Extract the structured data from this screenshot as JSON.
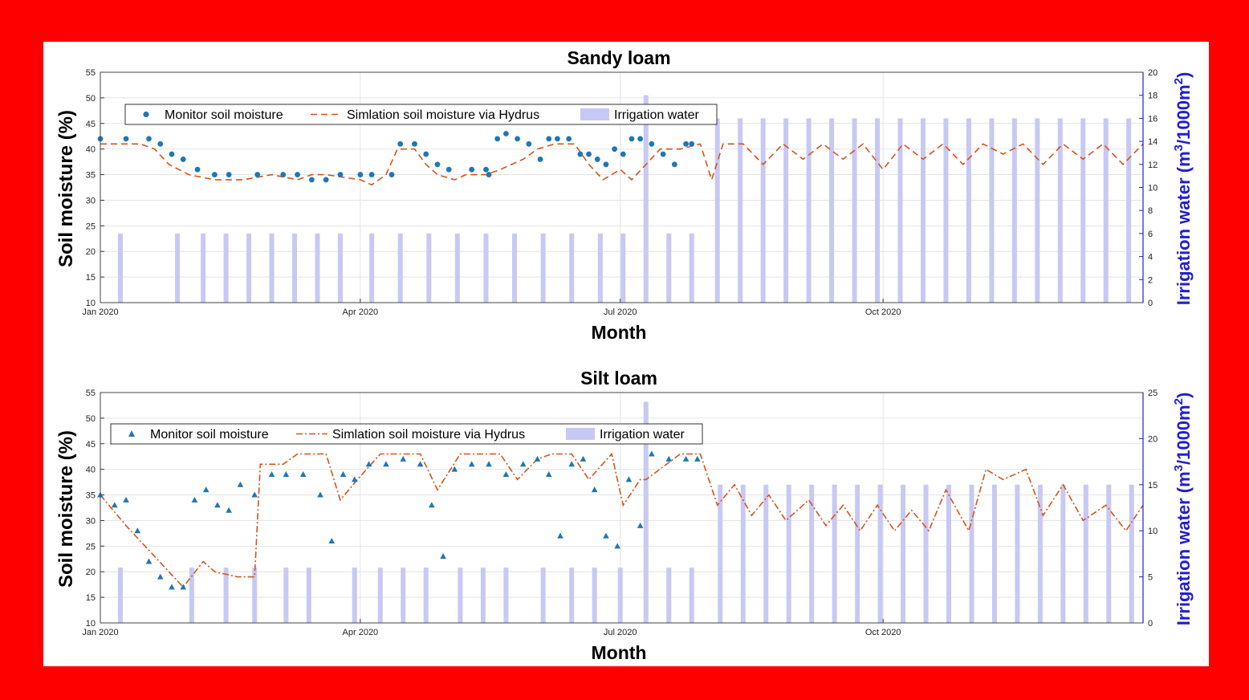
{
  "colors": {
    "frame": "#ff0000",
    "monitor": "#1f77b4",
    "simulation": "#d95319",
    "irrigation": "#c8c8f4",
    "right_axis": "#2020d0"
  },
  "x_ticks": [
    "Jan 2020",
    "Apr 2020",
    "Jul 2020",
    "Oct 2020"
  ],
  "chart_data": [
    {
      "type": "line",
      "title": "Sandy loam",
      "xlabel": "Month",
      "ylabel": "Soil moisture (%)",
      "y2label_base": "Irrigation water (m",
      "y2label_sup1": "3",
      "y2label_mid": "/1000m",
      "y2label_sup2": "2",
      "y2label_end": ")",
      "xlim": [
        "2020-01-01",
        "2020-12-31"
      ],
      "ylim": [
        10,
        55
      ],
      "y_ticks": [
        "10",
        "15",
        "20",
        "25",
        "30",
        "35",
        "40",
        "45",
        "50",
        "55"
      ],
      "y2lim": [
        0,
        20
      ],
      "y2_ticks": [
        "0",
        "2",
        "4",
        "6",
        "8",
        "10",
        "12",
        "14",
        "16",
        "18",
        "20"
      ],
      "legend_position": "top-left",
      "legend": [
        "Monitor soil moisture",
        "Simlation soil moisture via Hydrus",
        "Irrigation water"
      ],
      "series": [
        {
          "name": "Monitor soil moisture",
          "marker": "circle",
          "x": [
            "2020-01-01",
            "2020-01-10",
            "2020-01-18",
            "2020-01-22",
            "2020-01-26",
            "2020-01-30",
            "2020-02-04",
            "2020-02-10",
            "2020-02-15",
            "2020-02-25",
            "2020-03-05",
            "2020-03-10",
            "2020-03-15",
            "2020-03-20",
            "2020-03-25",
            "2020-04-01",
            "2020-04-05",
            "2020-04-12",
            "2020-04-15",
            "2020-04-20",
            "2020-04-24",
            "2020-04-28",
            "2020-05-02",
            "2020-05-10",
            "2020-05-15",
            "2020-05-16",
            "2020-05-19",
            "2020-05-22",
            "2020-05-26",
            "2020-05-30",
            "2020-06-03",
            "2020-06-06",
            "2020-06-09",
            "2020-06-13",
            "2020-06-17",
            "2020-06-20",
            "2020-06-23",
            "2020-06-26",
            "2020-06-29",
            "2020-07-02",
            "2020-07-05",
            "2020-07-08",
            "2020-07-12",
            "2020-07-16",
            "2020-07-20",
            "2020-07-24",
            "2020-07-26"
          ],
          "y": [
            42,
            42,
            42,
            41,
            39,
            38,
            36,
            35,
            35,
            35,
            35,
            35,
            34,
            34,
            35,
            35,
            35,
            35,
            41,
            41,
            39,
            37,
            36,
            36,
            36,
            35,
            42,
            43,
            42,
            41,
            38,
            42,
            42,
            42,
            39,
            39,
            38,
            37,
            40,
            39,
            42,
            42,
            41,
            39,
            37,
            41,
            41
          ]
        },
        {
          "name": "Simlation soil moisture via Hydrus",
          "style": "dashed",
          "x": [
            "2020-01-01",
            "2020-01-15",
            "2020-01-20",
            "2020-01-25",
            "2020-02-01",
            "2020-02-10",
            "2020-02-20",
            "2020-03-01",
            "2020-03-10",
            "2020-03-15",
            "2020-03-20",
            "2020-04-01",
            "2020-04-05",
            "2020-04-10",
            "2020-04-14",
            "2020-04-20",
            "2020-04-24",
            "2020-04-28",
            "2020-05-04",
            "2020-05-08",
            "2020-05-15",
            "2020-05-20",
            "2020-05-28",
            "2020-06-02",
            "2020-06-08",
            "2020-06-15",
            "2020-06-20",
            "2020-06-25",
            "2020-07-01",
            "2020-07-05",
            "2020-07-10",
            "2020-07-15",
            "2020-07-22",
            "2020-07-29",
            "2020-08-02",
            "2020-08-06",
            "2020-08-13",
            "2020-08-20",
            "2020-08-27",
            "2020-09-03",
            "2020-09-10",
            "2020-09-17",
            "2020-09-24",
            "2020-10-01",
            "2020-10-08",
            "2020-10-15",
            "2020-10-22",
            "2020-10-29",
            "2020-11-05",
            "2020-11-12",
            "2020-11-19",
            "2020-11-26",
            "2020-12-03",
            "2020-12-10",
            "2020-12-17",
            "2020-12-24",
            "2020-12-31"
          ],
          "y": [
            41,
            41,
            40,
            37,
            35,
            34,
            34,
            35,
            34,
            35,
            35,
            34,
            33,
            35,
            40,
            40,
            37,
            35,
            34,
            35,
            35,
            36,
            38,
            40,
            41,
            41,
            37,
            34,
            36,
            34,
            37,
            40,
            40,
            41,
            34,
            41,
            41,
            37,
            41,
            38,
            41,
            38,
            41,
            36,
            41,
            38,
            41,
            37,
            41,
            39,
            41,
            37,
            41,
            38,
            41,
            37,
            41
          ]
        },
        {
          "name": "Irrigation water",
          "type": "bar",
          "axis": "right",
          "x": [
            "2020-01-08",
            "2020-01-28",
            "2020-02-06",
            "2020-02-14",
            "2020-02-22",
            "2020-03-01",
            "2020-03-09",
            "2020-03-17",
            "2020-03-25",
            "2020-04-05",
            "2020-04-15",
            "2020-04-25",
            "2020-05-05",
            "2020-05-15",
            "2020-05-25",
            "2020-06-04",
            "2020-06-14",
            "2020-06-24",
            "2020-07-02",
            "2020-07-10",
            "2020-07-18",
            "2020-07-26",
            "2020-08-04",
            "2020-08-12",
            "2020-08-20",
            "2020-08-28",
            "2020-09-05",
            "2020-09-13",
            "2020-09-21",
            "2020-09-29",
            "2020-10-07",
            "2020-10-15",
            "2020-10-23",
            "2020-10-31",
            "2020-11-08",
            "2020-11-16",
            "2020-11-24",
            "2020-12-02",
            "2020-12-10",
            "2020-12-18",
            "2020-12-26"
          ],
          "values": [
            6,
            6,
            6,
            6,
            6,
            6,
            6,
            6,
            6,
            6,
            6,
            6,
            6,
            6,
            6,
            6,
            6,
            6,
            6,
            18,
            6,
            6,
            16,
            16,
            16,
            16,
            16,
            16,
            16,
            16,
            16,
            16,
            16,
            16,
            16,
            16,
            16,
            16,
            16,
            16,
            16
          ]
        }
      ]
    },
    {
      "type": "line",
      "title": "Silt loam",
      "xlabel": "Month",
      "ylabel": "Soil moisture (%)",
      "y2label_base": "Irrigation water (m",
      "y2label_sup1": "3",
      "y2label_mid": "/1000m",
      "y2label_sup2": "2",
      "y2label_end": ")",
      "xlim": [
        "2020-01-01",
        "2020-12-31"
      ],
      "ylim": [
        10,
        55
      ],
      "y_ticks": [
        "10",
        "15",
        "20",
        "25",
        "30",
        "35",
        "40",
        "45",
        "50",
        "55"
      ],
      "y2lim": [
        0,
        25
      ],
      "y2_ticks": [
        "0",
        "5",
        "10",
        "15",
        "20",
        "25"
      ],
      "legend_position": "top-left",
      "legend": [
        "Monitor soil moisture",
        "Simlation soil moisture via Hydrus",
        "Irrigation water"
      ],
      "series": [
        {
          "name": "Monitor soil moisture",
          "marker": "triangle",
          "x": [
            "2020-01-01",
            "2020-01-06",
            "2020-01-10",
            "2020-01-14",
            "2020-01-18",
            "2020-01-22",
            "2020-01-26",
            "2020-01-30",
            "2020-02-03",
            "2020-02-07",
            "2020-02-11",
            "2020-02-15",
            "2020-02-19",
            "2020-02-24",
            "2020-03-01",
            "2020-03-06",
            "2020-03-12",
            "2020-03-18",
            "2020-03-22",
            "2020-03-26",
            "2020-03-30",
            "2020-04-04",
            "2020-04-10",
            "2020-04-16",
            "2020-04-22",
            "2020-04-26",
            "2020-04-30",
            "2020-05-04",
            "2020-05-10",
            "2020-05-16",
            "2020-05-22",
            "2020-05-28",
            "2020-06-02",
            "2020-06-06",
            "2020-06-10",
            "2020-06-14",
            "2020-06-18",
            "2020-06-22",
            "2020-06-26",
            "2020-06-30",
            "2020-07-04",
            "2020-07-08",
            "2020-07-12",
            "2020-07-18",
            "2020-07-24",
            "2020-07-28"
          ],
          "y": [
            35,
            33,
            34,
            28,
            22,
            19,
            17,
            17,
            34,
            36,
            33,
            32,
            37,
            35,
            39,
            39,
            39,
            35,
            26,
            39,
            38,
            41,
            41,
            42,
            41,
            33,
            23,
            40,
            41,
            41,
            39,
            41,
            42,
            39,
            27,
            41,
            42,
            36,
            27,
            25,
            38,
            29,
            43,
            42,
            42,
            42
          ]
        },
        {
          "name": "Simlation soil moisture via Hydrus",
          "style": "dashdot",
          "x": [
            "2020-01-01",
            "2020-01-10",
            "2020-01-20",
            "2020-01-30",
            "2020-02-06",
            "2020-02-10",
            "2020-02-18",
            "2020-02-24",
            "2020-02-26",
            "2020-03-05",
            "2020-03-10",
            "2020-03-20",
            "2020-03-25",
            "2020-03-31",
            "2020-04-08",
            "2020-04-16",
            "2020-04-22",
            "2020-04-28",
            "2020-05-06",
            "2020-05-14",
            "2020-05-20",
            "2020-05-26",
            "2020-06-02",
            "2020-06-07",
            "2020-06-14",
            "2020-06-20",
            "2020-06-28",
            "2020-07-02",
            "2020-07-08",
            "2020-07-10",
            "2020-07-22",
            "2020-07-29",
            "2020-08-04",
            "2020-08-10",
            "2020-08-16",
            "2020-08-22",
            "2020-08-28",
            "2020-09-05",
            "2020-09-11",
            "2020-09-17",
            "2020-09-23",
            "2020-09-29",
            "2020-10-05",
            "2020-10-11",
            "2020-10-17",
            "2020-10-23",
            "2020-10-31",
            "2020-11-06",
            "2020-11-12",
            "2020-11-20",
            "2020-11-26",
            "2020-12-03",
            "2020-12-10",
            "2020-12-18",
            "2020-12-25",
            "2020-12-31"
          ],
          "y": [
            35,
            29,
            23,
            17,
            22,
            20,
            19,
            19,
            41,
            41,
            43,
            43,
            34,
            38,
            43,
            43,
            43,
            36,
            43,
            43,
            43,
            38,
            42,
            43,
            43,
            38,
            43,
            33,
            38,
            38,
            43,
            43,
            33,
            37,
            31,
            35,
            30,
            34,
            29,
            33,
            28,
            33,
            28,
            32,
            28,
            36,
            28,
            40,
            38,
            40,
            31,
            37,
            30,
            33,
            28,
            33
          ]
        },
        {
          "name": "Irrigation water",
          "type": "bar",
          "axis": "right",
          "x": [
            "2020-01-08",
            "2020-02-02",
            "2020-02-14",
            "2020-02-24",
            "2020-03-06",
            "2020-03-14",
            "2020-03-30",
            "2020-04-08",
            "2020-04-16",
            "2020-04-24",
            "2020-05-06",
            "2020-05-14",
            "2020-05-22",
            "2020-06-04",
            "2020-06-14",
            "2020-06-22",
            "2020-07-01",
            "2020-07-10",
            "2020-07-18",
            "2020-07-26",
            "2020-08-05",
            "2020-08-13",
            "2020-08-21",
            "2020-08-29",
            "2020-09-06",
            "2020-09-14",
            "2020-09-22",
            "2020-09-30",
            "2020-10-08",
            "2020-10-16",
            "2020-10-24",
            "2020-11-01",
            "2020-11-09",
            "2020-11-17",
            "2020-11-25",
            "2020-12-03",
            "2020-12-11",
            "2020-12-19",
            "2020-12-27"
          ],
          "values": [
            6,
            6,
            6,
            6,
            6,
            6,
            6,
            6,
            6,
            6,
            6,
            6,
            6,
            6,
            6,
            6,
            6,
            24,
            6,
            6,
            15,
            15,
            15,
            15,
            15,
            15,
            15,
            15,
            15,
            15,
            15,
            15,
            15,
            15,
            15,
            15,
            15,
            15,
            15
          ]
        }
      ]
    }
  ]
}
